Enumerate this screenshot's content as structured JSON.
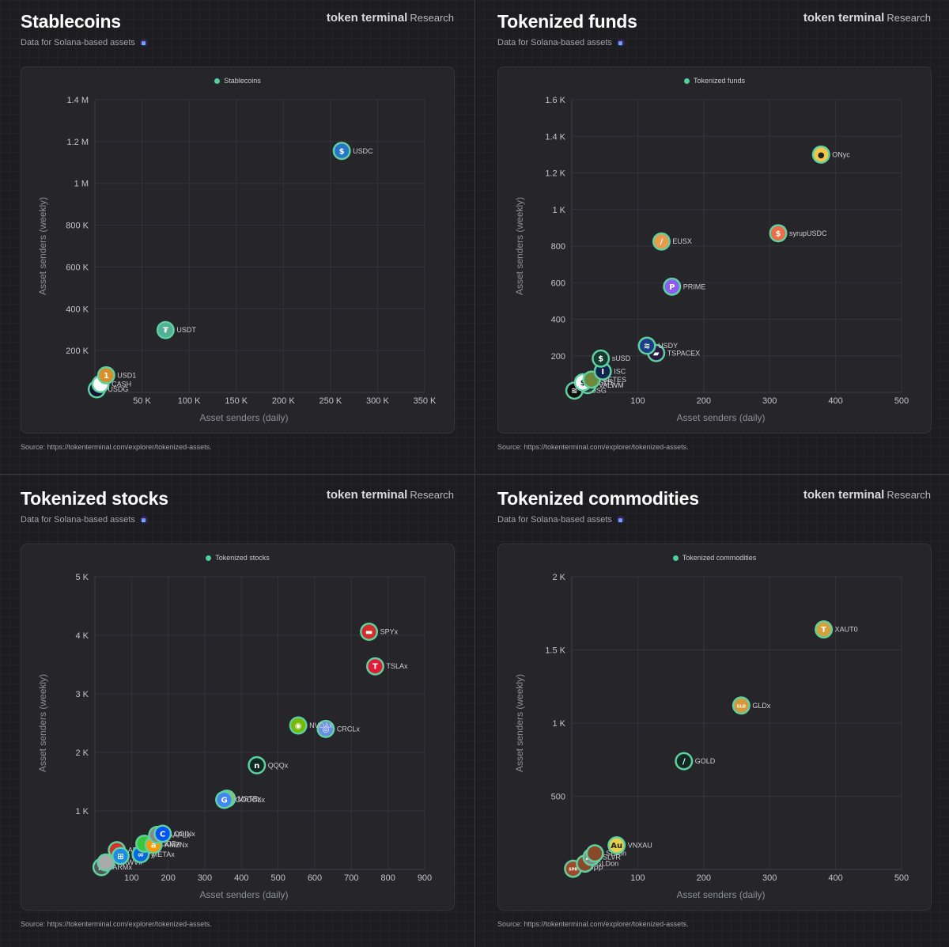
{
  "brand": {
    "name": "token terminal",
    "suffix": "Research"
  },
  "subtitle": "Data for Solana-based assets",
  "source": "Source: https://tokenterminal.com/explorer/tokenized-assets.",
  "chart_data": [
    {
      "type": "scatter",
      "title": "Stablecoins",
      "legend": "Stablecoins",
      "legend_position": "top-center",
      "xlabel": "Asset senders (daily)",
      "ylabel": "Asset senders (weekly)",
      "xlim": [
        0,
        350000
      ],
      "ylim": [
        0,
        1400000
      ],
      "xticks": [
        50000,
        100000,
        150000,
        200000,
        250000,
        300000,
        350000
      ],
      "xtick_labels": [
        "50 K",
        "100 K",
        "150 K",
        "200 K",
        "250 K",
        "300 K",
        "350 K"
      ],
      "yticks": [
        200000,
        400000,
        600000,
        800000,
        1000000,
        1200000,
        1400000
      ],
      "ytick_labels": [
        "200 K",
        "400 K",
        "600 K",
        "800 K",
        "1 M",
        "1.2 M",
        "1.4 M"
      ],
      "grid": true,
      "points": [
        {
          "label": "USDC",
          "x": 262000,
          "y": 1155000,
          "color": "#2775ca",
          "glyph": "$"
        },
        {
          "label": "USDT",
          "x": 75000,
          "y": 298000,
          "color": "#50af95",
          "glyph": "₮"
        },
        {
          "label": "USD1",
          "x": 12000,
          "y": 82000,
          "color": "#d9902b",
          "glyph": "1"
        },
        {
          "label": "CASH",
          "x": 6000,
          "y": 40000,
          "color": "#ffffff",
          "glyph": ""
        },
        {
          "label": "USDG",
          "x": 2000,
          "y": 15000,
          "color": "#111133",
          "glyph": "~"
        }
      ]
    },
    {
      "type": "scatter",
      "title": "Tokenized funds",
      "legend": "Tokenized funds",
      "legend_position": "top-center",
      "xlabel": "Asset senders (daily)",
      "ylabel": "Asset senders (weekly)",
      "xlim": [
        0,
        500
      ],
      "ylim": [
        0,
        1600
      ],
      "xticks": [
        100,
        200,
        300,
        400,
        500
      ],
      "xtick_labels": [
        "100",
        "200",
        "300",
        "400",
        "500"
      ],
      "yticks": [
        200,
        400,
        600,
        800,
        1000,
        1200,
        1400,
        1600
      ],
      "ytick_labels": [
        "200",
        "400",
        "600",
        "800",
        "1 K",
        "1.2 K",
        "1.4 K",
        "1.6 K"
      ],
      "grid": true,
      "points": [
        {
          "label": "ONyc",
          "x": 378,
          "y": 1300,
          "color": "#f3c64a",
          "glyph": "●"
        },
        {
          "label": "syrupUSDC",
          "x": 313,
          "y": 870,
          "color": "#ee6b45",
          "glyph": "$"
        },
        {
          "label": "EUSX",
          "x": 136,
          "y": 825,
          "color": "#e99a4a",
          "glyph": "/"
        },
        {
          "label": "PRIME",
          "x": 152,
          "y": 578,
          "color": "#8d5cf6",
          "glyph": "P"
        },
        {
          "label": "USDY",
          "x": 114,
          "y": 255,
          "color": "#1a3f86",
          "glyph": "≋"
        },
        {
          "label": "TSPACEX",
          "x": 128,
          "y": 215,
          "color": "#2a1a3f",
          "glyph": "▰"
        },
        {
          "label": "sUSD",
          "x": 44,
          "y": 185,
          "color": "#153a2e",
          "glyph": "$"
        },
        {
          "label": "ISC",
          "x": 47,
          "y": 115,
          "color": "#0f2550",
          "glyph": "I"
        },
        {
          "label": "CETES",
          "x": 30,
          "y": 70,
          "color": "#6b8a3e",
          "glyph": ""
        },
        {
          "label": "USDS",
          "x": 17,
          "y": 55,
          "color": "#ffffff",
          "glyph": "$"
        },
        {
          "label": "VALWM",
          "x": 24,
          "y": 40,
          "color": "#333333",
          "glyph": ""
        },
        {
          "label": "OUSG",
          "x": 4,
          "y": 10,
          "color": "#0f0f0f",
          "glyph": "≋"
        }
      ]
    },
    {
      "type": "scatter",
      "title": "Tokenized stocks",
      "legend": "Tokenized stocks",
      "legend_position": "top-center",
      "xlabel": "Asset senders (daily)",
      "ylabel": "Asset senders (weekly)",
      "xlim": [
        0,
        900
      ],
      "ylim": [
        0,
        5000
      ],
      "xticks": [
        100,
        200,
        300,
        400,
        500,
        600,
        700,
        800,
        900
      ],
      "xtick_labels": [
        "100",
        "200",
        "300",
        "400",
        "500",
        "600",
        "700",
        "800",
        "900"
      ],
      "yticks": [
        1000,
        2000,
        3000,
        4000,
        5000
      ],
      "ytick_labels": [
        "1 K",
        "2 K",
        "3 K",
        "4 K",
        "5 K"
      ],
      "grid": true,
      "points": [
        {
          "label": "SPYx",
          "x": 748,
          "y": 4060,
          "color": "#d42b2b",
          "glyph": "▬"
        },
        {
          "label": "TSLAx",
          "x": 765,
          "y": 3470,
          "color": "#e31937",
          "glyph": "T"
        },
        {
          "label": "NVDAx",
          "x": 555,
          "y": 2460,
          "color": "#76b900",
          "glyph": "◉"
        },
        {
          "label": "CRCLx",
          "x": 630,
          "y": 2400,
          "color": "#6a8ee8",
          "glyph": "◎"
        },
        {
          "label": "QQQx",
          "x": 442,
          "y": 1780,
          "color": "#0e2a24",
          "glyph": "n"
        },
        {
          "label": "GOOGLx",
          "x": 353,
          "y": 1190,
          "color": "#4285f4",
          "glyph": "G"
        },
        {
          "label": "MSTRx",
          "x": 360,
          "y": 1210,
          "color": "#f7931a",
          "glyph": ""
        },
        {
          "label": "COINx",
          "x": 185,
          "y": 610,
          "color": "#0052ff",
          "glyph": "C"
        },
        {
          "label": "AAPLx",
          "x": 170,
          "y": 590,
          "color": "#888888",
          "glyph": ""
        },
        {
          "label": "AMZNx",
          "x": 160,
          "y": 420,
          "color": "#ff9900",
          "glyph": "a"
        },
        {
          "label": "HOODx",
          "x": 135,
          "y": 440,
          "color": "#3cc63c",
          "glyph": ""
        },
        {
          "label": "METAx",
          "x": 125,
          "y": 260,
          "color": "#0668e1",
          "glyph": "∞"
        },
        {
          "label": "MSFTx",
          "x": 70,
          "y": 230,
          "color": "#1c8be6",
          "glyph": "⊞"
        },
        {
          "label": "ABTx",
          "x": 60,
          "y": 330,
          "color": "#d0332c",
          "glyph": ""
        },
        {
          "label": "CRWVx",
          "x": 30,
          "y": 120,
          "color": "#aaaaaa",
          "glyph": ""
        },
        {
          "label": "ARMx",
          "x": 18,
          "y": 40,
          "color": "#555555",
          "glyph": "Λ"
        }
      ]
    },
    {
      "type": "scatter",
      "title": "Tokenized commodities",
      "legend": "Tokenized commodities",
      "legend_position": "top-center",
      "xlabel": "Asset senders (daily)",
      "ylabel": "Asset senders (weekly)",
      "xlim": [
        0,
        500
      ],
      "ylim": [
        0,
        2000
      ],
      "xticks": [
        100,
        200,
        300,
        400,
        500
      ],
      "xtick_labels": [
        "100",
        "200",
        "300",
        "400",
        "500"
      ],
      "yticks": [
        500,
        1000,
        1500,
        2000
      ],
      "ytick_labels": [
        "500",
        "1 K",
        "1.5 K",
        "2 K"
      ],
      "grid": true,
      "points": [
        {
          "label": "XAUT0",
          "x": 382,
          "y": 1640,
          "color": "#d4a13a",
          "glyph": "T"
        },
        {
          "label": "GLDx",
          "x": 257,
          "y": 1120,
          "color": "#d49a3a",
          "glyph": "GLD"
        },
        {
          "label": "GOLD",
          "x": 170,
          "y": 740,
          "color": "#0f2a22",
          "glyph": "/"
        },
        {
          "label": "VNXAU",
          "x": 68,
          "y": 165,
          "color": "#e7d14a",
          "glyph": "Au"
        },
        {
          "label": "SLVon",
          "x": 35,
          "y": 110,
          "color": "#8a4a2a",
          "glyph": ""
        },
        {
          "label": "SLVR",
          "x": 30,
          "y": 85,
          "color": "#888888",
          "glyph": "Ag"
        },
        {
          "label": "GLDon",
          "x": 20,
          "y": 40,
          "color": "#8a4a2a",
          "glyph": ""
        },
        {
          "label": "SPPP",
          "x": 2,
          "y": 5,
          "color": "#a04a2a",
          "glyph": "SPR"
        }
      ]
    }
  ]
}
